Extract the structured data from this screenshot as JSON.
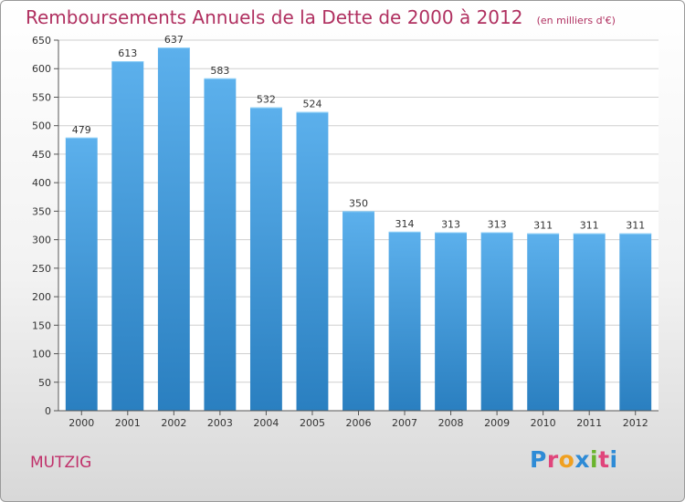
{
  "chart_data": {
    "type": "bar",
    "title": "Remboursements Annuels de la Dette de 2000 à 2012",
    "unit": "(en milliers d'€)",
    "categories": [
      "2000",
      "2001",
      "2002",
      "2003",
      "2004",
      "2005",
      "2006",
      "2007",
      "2008",
      "2009",
      "2010",
      "2011",
      "2012"
    ],
    "values": [
      479,
      613,
      637,
      583,
      532,
      524,
      350,
      314,
      313,
      313,
      311,
      311,
      311
    ],
    "ylim": [
      0,
      650
    ],
    "yticks": [
      0,
      50,
      100,
      150,
      200,
      250,
      300,
      350,
      400,
      450,
      500,
      550,
      600,
      650
    ],
    "grid": true,
    "colors": {
      "bar_top": "#5cb0ec",
      "bar_bottom": "#2a7fc0",
      "grid": "#cfcfcf",
      "title": "#b03060"
    }
  },
  "commune": "MUTZIG",
  "logo": {
    "text": "Proxiti",
    "letter_colors": [
      "#2e8bd6",
      "#e0457b",
      "#f0a020",
      "#2e8bd6",
      "#6ab42d",
      "#e0457b",
      "#2e8bd6"
    ]
  }
}
